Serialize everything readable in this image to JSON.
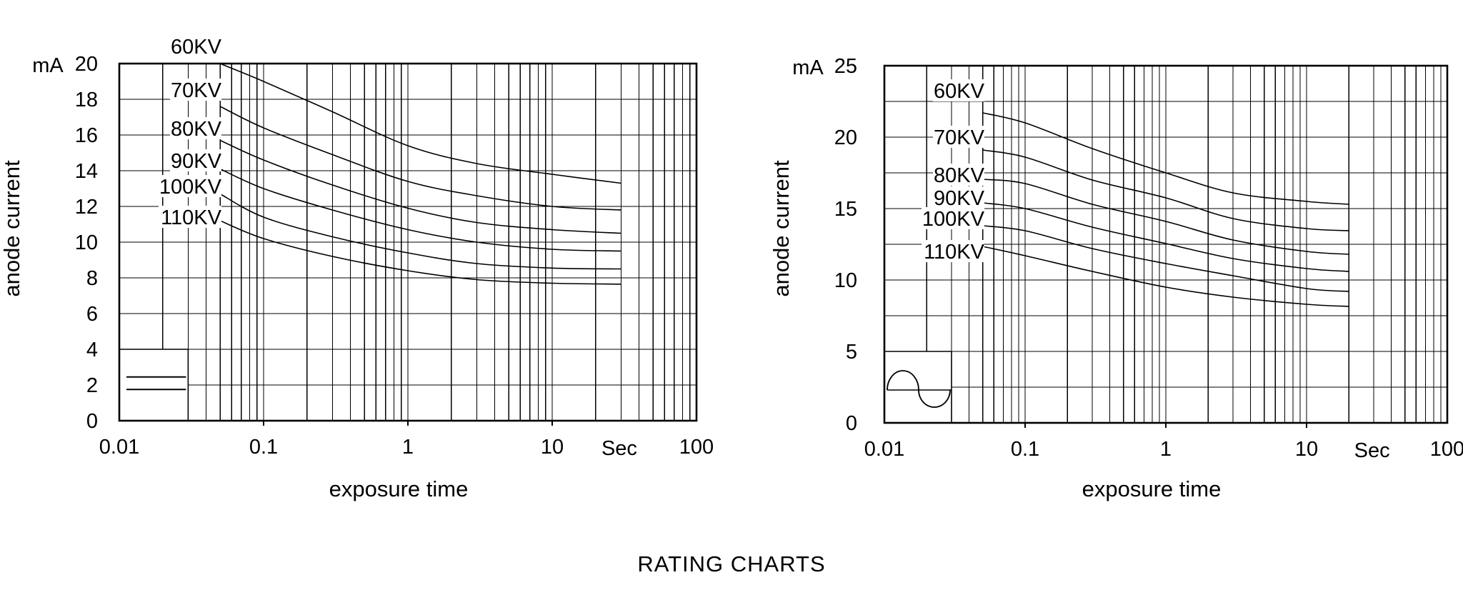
{
  "page": {
    "caption": "RATING CHARTS",
    "background_color": "#ffffff",
    "line_color": "#000000"
  },
  "chart_data": [
    {
      "id": "dc-rating-chart",
      "type": "line",
      "x_scale": "log",
      "xlabel": "exposure time",
      "x_unit_label": "Sec",
      "ylabel": "anode current",
      "y_unit": "mA",
      "xlim": [
        0.01,
        100
      ],
      "x_tick_labels": [
        "0.01",
        "0.1",
        "1",
        "10",
        "100"
      ],
      "ylim": [
        0,
        20
      ],
      "y_tick_labels": [
        "0",
        "2",
        "4",
        "6",
        "8",
        "10",
        "12",
        "14",
        "16",
        "18",
        "20"
      ],
      "grid": true,
      "legend_symbol": "dc-parallel-lines",
      "x": [
        0.05,
        0.1,
        0.3,
        1,
        3,
        10,
        30
      ],
      "series": [
        {
          "name": "60KV",
          "values": [
            20.0,
            19.0,
            17.3,
            15.4,
            14.4,
            13.8,
            13.3
          ]
        },
        {
          "name": "70KV",
          "values": [
            17.6,
            16.4,
            14.9,
            13.4,
            12.6,
            12.0,
            11.8
          ]
        },
        {
          "name": "80KV",
          "values": [
            15.7,
            14.6,
            13.2,
            11.9,
            11.1,
            10.7,
            10.5
          ]
        },
        {
          "name": "90KV",
          "values": [
            14.1,
            13.0,
            11.8,
            10.7,
            10.0,
            9.6,
            9.5
          ]
        },
        {
          "name": "100KV",
          "values": [
            12.7,
            11.4,
            10.3,
            9.4,
            8.8,
            8.55,
            8.5
          ]
        },
        {
          "name": "110KV",
          "values": [
            11.2,
            10.2,
            9.2,
            8.4,
            7.9,
            7.7,
            7.65
          ]
        }
      ]
    },
    {
      "id": "ac-rating-chart",
      "type": "line",
      "x_scale": "log",
      "xlabel": "exposure time",
      "x_unit_label": "Sec",
      "ylabel": "anode current",
      "y_unit": "mA",
      "xlim": [
        0.01,
        100
      ],
      "x_tick_labels": [
        "0.01",
        "0.1",
        "1",
        "10",
        "100"
      ],
      "ylim": [
        0,
        25
      ],
      "y_tick_labels": [
        "0",
        "5",
        "10",
        "15",
        "20",
        "25"
      ],
      "grid": true,
      "legend_symbol": "ac-sine-wave",
      "x": [
        0.05,
        0.1,
        0.3,
        1,
        3,
        10,
        20
      ],
      "series": [
        {
          "name": "60KV",
          "values": [
            21.7,
            21.0,
            19.2,
            17.5,
            16.1,
            15.5,
            15.3
          ]
        },
        {
          "name": "70KV",
          "values": [
            19.1,
            18.6,
            17.0,
            15.75,
            14.3,
            13.6,
            13.45
          ]
        },
        {
          "name": "80KV",
          "values": [
            17.05,
            16.75,
            15.3,
            14.1,
            12.8,
            12.0,
            11.8
          ]
        },
        {
          "name": "90KV",
          "values": [
            15.4,
            15.0,
            13.7,
            12.55,
            11.5,
            10.8,
            10.6
          ]
        },
        {
          "name": "100KV",
          "values": [
            13.8,
            13.45,
            12.2,
            11.15,
            10.3,
            9.4,
            9.2
          ]
        },
        {
          "name": "110KV",
          "values": [
            12.35,
            11.7,
            10.6,
            9.5,
            8.8,
            8.3,
            8.15
          ]
        }
      ]
    }
  ]
}
